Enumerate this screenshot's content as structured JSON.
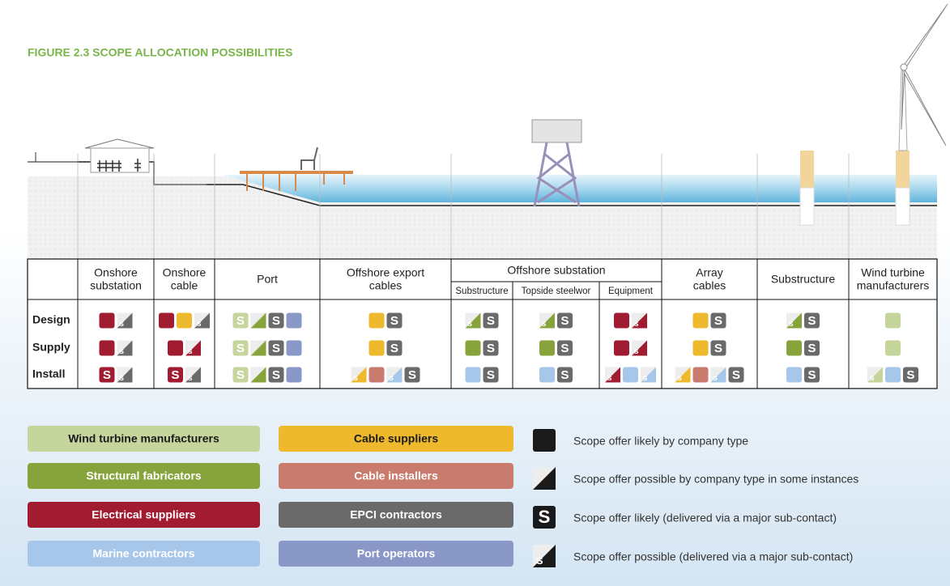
{
  "title": "FIGURE 2.3 SCOPE ALLOCATION POSSIBILITIES",
  "symbols": {
    "S": "S",
    "s": "s"
  },
  "rows": [
    "Design",
    "Supply",
    "Install"
  ],
  "columns": [
    {
      "label": [
        "Onshore",
        "substation"
      ]
    },
    {
      "label": [
        "Onshore",
        "cable"
      ]
    },
    {
      "label": [
        "Port"
      ]
    },
    {
      "label": [
        "Offshore export",
        "cables"
      ]
    },
    {
      "label": [
        "Offshore substation"
      ],
      "sub": [
        "Substructure",
        "Topside steelwor",
        "Equipment"
      ]
    },
    {
      "label": [
        "Array",
        "cables"
      ]
    },
    {
      "label": [
        "Substructure"
      ]
    },
    {
      "label": [
        "Wind turbine",
        "manufacturers"
      ]
    }
  ],
  "cells": [
    [
      [
        {
          "k": "sq",
          "c": 2
        },
        {
          "k": "s",
          "c": 6
        }
      ],
      [
        {
          "k": "sq",
          "c": 2
        },
        {
          "k": "s",
          "c": 6
        }
      ],
      [
        {
          "k": "S",
          "c": 2
        },
        {
          "k": "s",
          "c": 6
        }
      ]
    ],
    [
      [
        {
          "k": "sq",
          "c": 2
        },
        {
          "k": "sq",
          "c": 4
        },
        {
          "k": "s",
          "c": 6
        }
      ],
      [
        {
          "k": "sq",
          "c": 2
        },
        {
          "k": "s",
          "c": 2
        }
      ],
      [
        {
          "k": "S",
          "c": 2
        },
        {
          "k": "s",
          "c": 6
        }
      ]
    ],
    [
      [
        {
          "k": "S",
          "c": 0
        },
        {
          "k": "tri",
          "c": 1
        },
        {
          "k": "S",
          "c": 6
        },
        {
          "k": "sq",
          "c": 7
        }
      ],
      [
        {
          "k": "S",
          "c": 0
        },
        {
          "k": "tri",
          "c": 1
        },
        {
          "k": "S",
          "c": 6
        },
        {
          "k": "sq",
          "c": 7
        }
      ],
      [
        {
          "k": "S",
          "c": 0
        },
        {
          "k": "tri",
          "c": 1
        },
        {
          "k": "S",
          "c": 6
        },
        {
          "k": "sq",
          "c": 7
        }
      ]
    ],
    [
      [
        {
          "k": "sq",
          "c": 4
        },
        {
          "k": "S",
          "c": 6
        }
      ],
      [
        {
          "k": "sq",
          "c": 4
        },
        {
          "k": "S",
          "c": 6
        }
      ],
      [
        {
          "k": "s",
          "c": 4
        },
        {
          "k": "sq",
          "c": 5
        },
        {
          "k": "s",
          "c": 3
        },
        {
          "k": "S",
          "c": 6
        }
      ]
    ],
    [
      [
        {
          "k": "s",
          "c": 1
        },
        {
          "k": "S",
          "c": 6
        }
      ],
      [
        {
          "k": "sq",
          "c": 1
        },
        {
          "k": "S",
          "c": 6
        }
      ],
      [
        {
          "k": "sq",
          "c": 3
        },
        {
          "k": "S",
          "c": 6
        }
      ]
    ],
    [
      [
        {
          "k": "s",
          "c": 1
        },
        {
          "k": "S",
          "c": 6
        }
      ],
      [
        {
          "k": "sq",
          "c": 1
        },
        {
          "k": "S",
          "c": 6
        }
      ],
      [
        {
          "k": "sq",
          "c": 3
        },
        {
          "k": "S",
          "c": 6
        }
      ]
    ],
    [
      [
        {
          "k": "sq",
          "c": 2
        },
        {
          "k": "s",
          "c": 2
        }
      ],
      [
        {
          "k": "sq",
          "c": 2
        },
        {
          "k": "s",
          "c": 2
        }
      ],
      [
        {
          "k": "s",
          "c": 2
        },
        {
          "k": "sq",
          "c": 3
        },
        {
          "k": "s",
          "c": 3
        }
      ]
    ],
    [
      [
        {
          "k": "sq",
          "c": 4
        },
        {
          "k": "S",
          "c": 6
        }
      ],
      [
        {
          "k": "sq",
          "c": 4
        },
        {
          "k": "S",
          "c": 6
        }
      ],
      [
        {
          "k": "s",
          "c": 4
        },
        {
          "k": "sq",
          "c": 5
        },
        {
          "k": "s",
          "c": 3
        },
        {
          "k": "S",
          "c": 6
        }
      ]
    ],
    [
      [
        {
          "k": "s",
          "c": 1
        },
        {
          "k": "S",
          "c": 6
        }
      ],
      [
        {
          "k": "sq",
          "c": 1
        },
        {
          "k": "S",
          "c": 6
        }
      ],
      [
        {
          "k": "sq",
          "c": 3
        },
        {
          "k": "S",
          "c": 6
        }
      ]
    ],
    [
      [
        {
          "k": "sq",
          "c": 0
        }
      ],
      [
        {
          "k": "sq",
          "c": 0
        }
      ],
      [
        {
          "k": "s",
          "c": 0
        },
        {
          "k": "sq",
          "c": 3
        },
        {
          "k": "S",
          "c": 6
        }
      ]
    ]
  ],
  "companies": [
    {
      "name": "Wind turbine manufacturers",
      "color": "#c6d59c",
      "text_color": "#1a1a1a"
    },
    {
      "name": "Structural fabricators",
      "color": "#87a33b",
      "text_color": "#ffffff"
    },
    {
      "name": "Electrical suppliers",
      "color": "#a11c30",
      "text_color": "#ffffff"
    },
    {
      "name": "Marine contractors",
      "color": "#a6c7e9",
      "text_color": "#ffffff"
    },
    {
      "name": "Cable suppliers",
      "color": "#efb92e",
      "text_color": "#1a1a1a"
    },
    {
      "name": "Cable installers",
      "color": "#c97b6d",
      "text_color": "#ffffff"
    },
    {
      "name": "EPCI contractors",
      "color": "#6a6a6a",
      "text_color": "#ffffff"
    },
    {
      "name": "Port operators",
      "color": "#8a98c8",
      "text_color": "#ffffff"
    }
  ],
  "key": [
    {
      "k": "sq",
      "text": "Scope offer likely by company type"
    },
    {
      "k": "tri",
      "text": "Scope offer possible by company type in some instances"
    },
    {
      "k": "S",
      "text": "Scope offer likely (delivered via a major sub-contact)"
    },
    {
      "k": "s",
      "text": "Scope offer possible (delivered via a major sub-contact)"
    }
  ]
}
